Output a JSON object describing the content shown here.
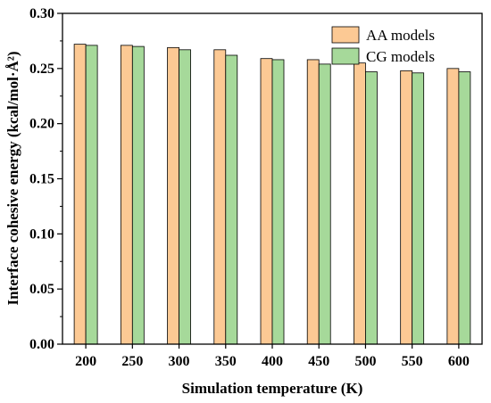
{
  "chart_data": {
    "type": "bar",
    "categories": [
      "200",
      "250",
      "300",
      "350",
      "400",
      "450",
      "500",
      "550",
      "600"
    ],
    "series": [
      {
        "name": "AA models",
        "color": "#fcc994",
        "values": [
          0.272,
          0.271,
          0.269,
          0.267,
          0.259,
          0.258,
          0.255,
          0.248,
          0.25
        ]
      },
      {
        "name": "CG models",
        "color": "#a6d99a",
        "values": [
          0.271,
          0.27,
          0.267,
          0.262,
          0.258,
          0.254,
          0.247,
          0.246,
          0.247
        ]
      }
    ],
    "xlabel": "Simulation temperature (K)",
    "ylabel": "Interface cohesive energy (kcal/mol·Å²)",
    "ylim": [
      0,
      0.3
    ],
    "yticks": [
      "0.00",
      "0.05",
      "0.10",
      "0.15",
      "0.20",
      "0.25",
      "0.30"
    ],
    "legend_position": "top-right",
    "grid": false
  }
}
